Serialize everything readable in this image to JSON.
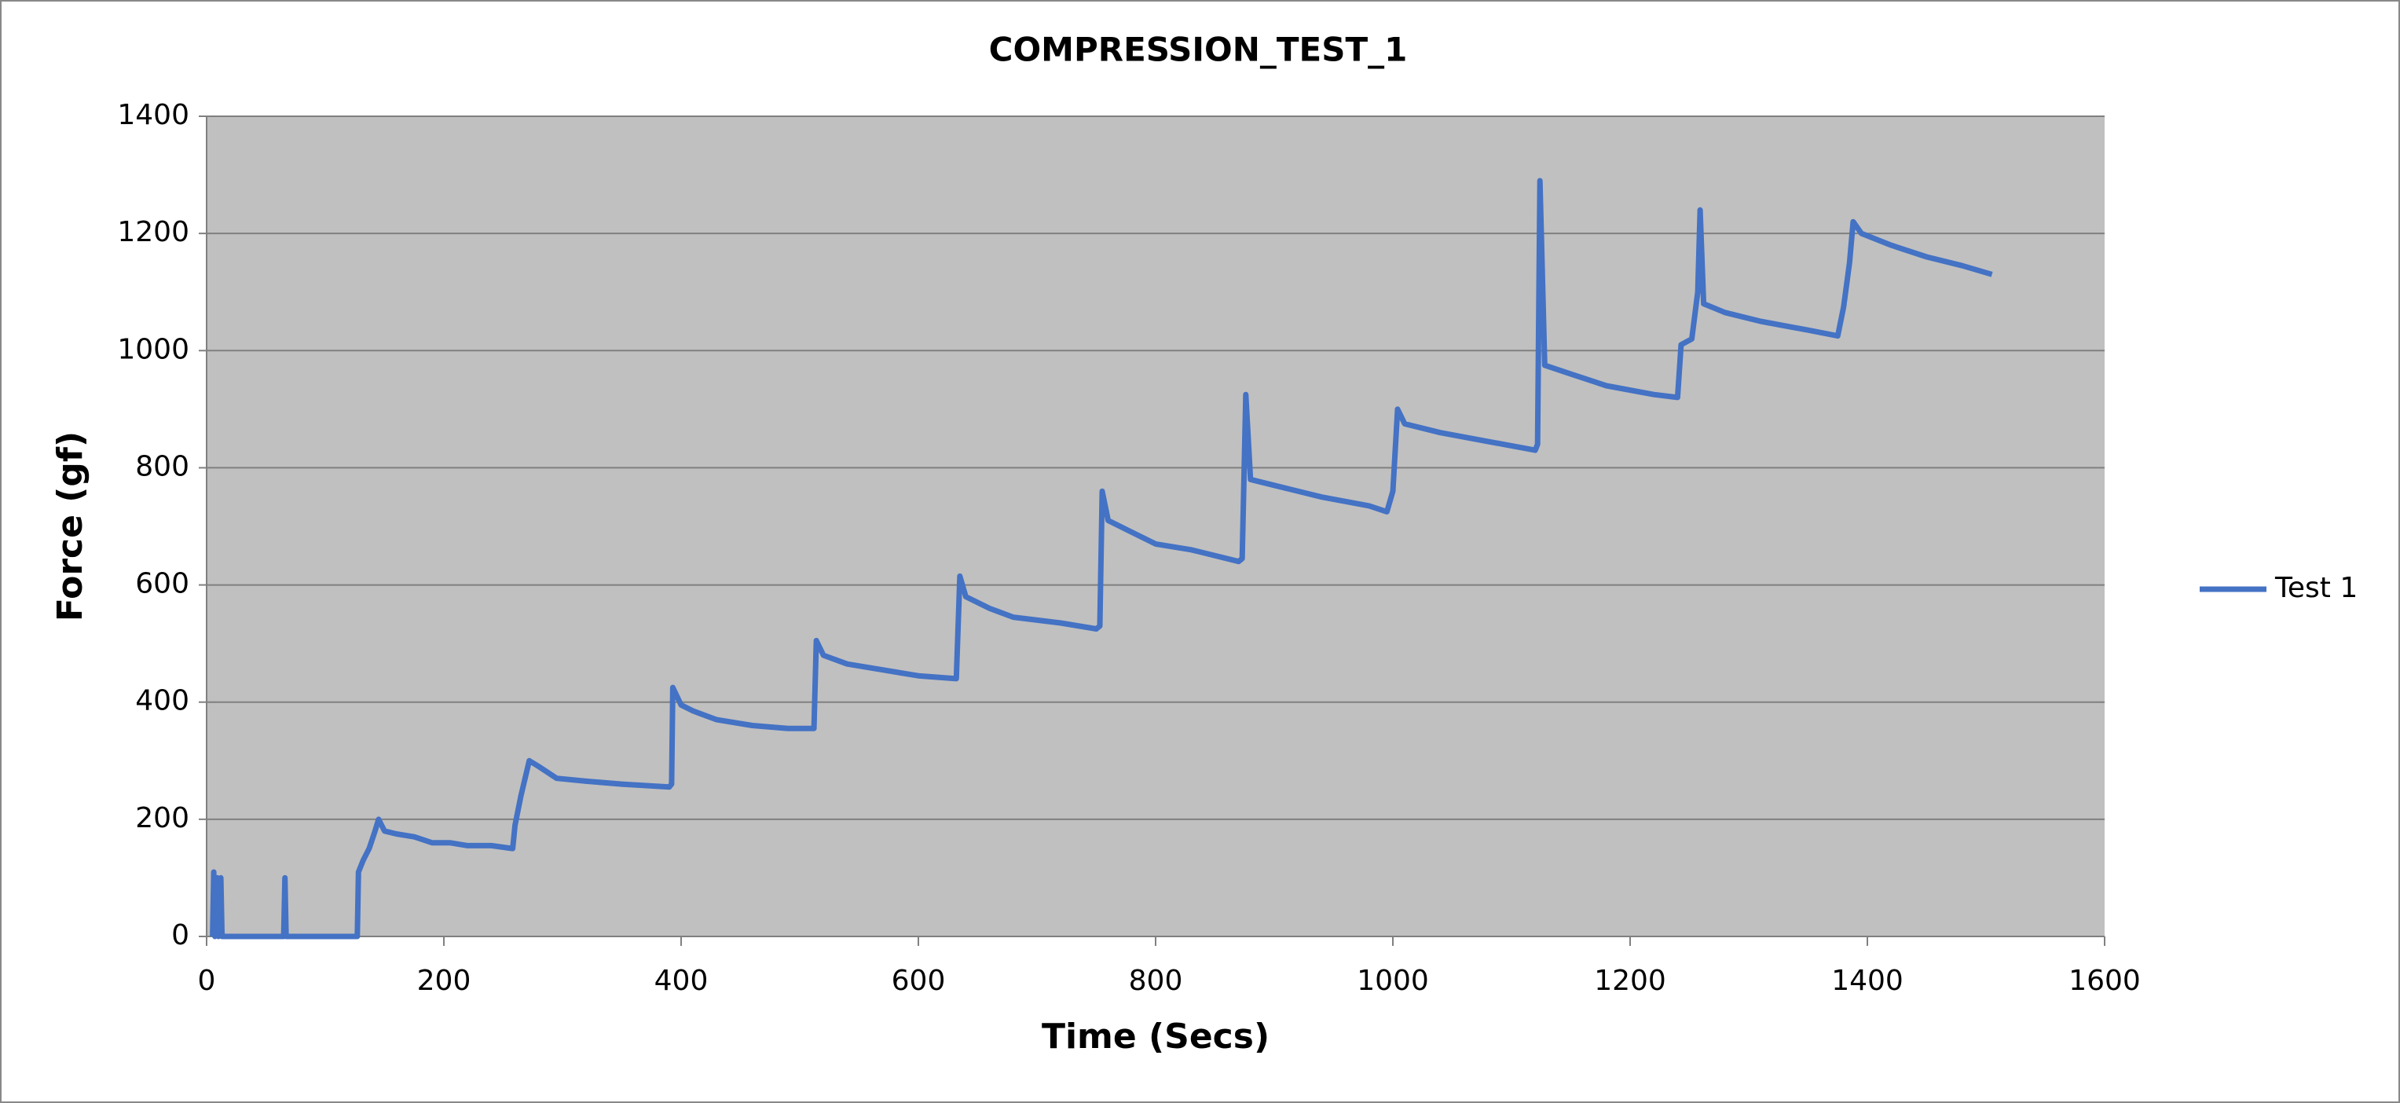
{
  "chart_data": {
    "type": "line",
    "title": "COMPRESSION_TEST_1",
    "x_label": "Time (Secs)",
    "y_label": "Force (gf)",
    "x": [
      5,
      6,
      7,
      9,
      10,
      12,
      13,
      65,
      66,
      67,
      127,
      128,
      132,
      137,
      142,
      145,
      150,
      160,
      175,
      190,
      205,
      220,
      240,
      258,
      260,
      265,
      272,
      280,
      295,
      320,
      350,
      390,
      392,
      393,
      400,
      410,
      430,
      460,
      490,
      512,
      514,
      520,
      540,
      570,
      600,
      632,
      635,
      640,
      660,
      680,
      720,
      750,
      753,
      755,
      760,
      780,
      800,
      830,
      870,
      873,
      876,
      880,
      900,
      940,
      980,
      995,
      1000,
      1004,
      1010,
      1040,
      1080,
      1120,
      1122,
      1124,
      1128,
      1150,
      1180,
      1220,
      1240,
      1243,
      1252,
      1257,
      1259,
      1262,
      1280,
      1310,
      1350,
      1375,
      1380,
      1385,
      1388,
      1395,
      1420,
      1450,
      1480,
      1505
    ],
    "series": [
      {
        "name": "Test 1",
        "color": "#4472c4",
        "values": [
          0,
          110,
          0,
          100,
          0,
          100,
          0,
          0,
          100,
          0,
          0,
          110,
          130,
          150,
          180,
          200,
          180,
          175,
          170,
          160,
          160,
          155,
          155,
          150,
          190,
          240,
          300,
          290,
          270,
          265,
          260,
          255,
          260,
          425,
          395,
          385,
          370,
          360,
          355,
          355,
          505,
          480,
          465,
          455,
          445,
          440,
          615,
          580,
          560,
          545,
          535,
          525,
          530,
          760,
          710,
          690,
          670,
          660,
          640,
          645,
          925,
          780,
          770,
          750,
          735,
          725,
          760,
          900,
          875,
          860,
          845,
          830,
          840,
          1290,
          975,
          960,
          940,
          925,
          920,
          1010,
          1020,
          1100,
          1240,
          1080,
          1065,
          1050,
          1035,
          1025,
          1075,
          1150,
          1220,
          1200,
          1180,
          1160,
          1145,
          1130
        ]
      }
    ],
    "xlim": [
      0,
      1600
    ],
    "xticks": [
      0,
      200,
      400,
      600,
      800,
      1000,
      1200,
      1400,
      1600
    ],
    "ylim": [
      0,
      1400
    ],
    "yticks": [
      0,
      200,
      400,
      600,
      800,
      1000,
      1200,
      1400
    ],
    "grid": true,
    "legend": "right"
  }
}
